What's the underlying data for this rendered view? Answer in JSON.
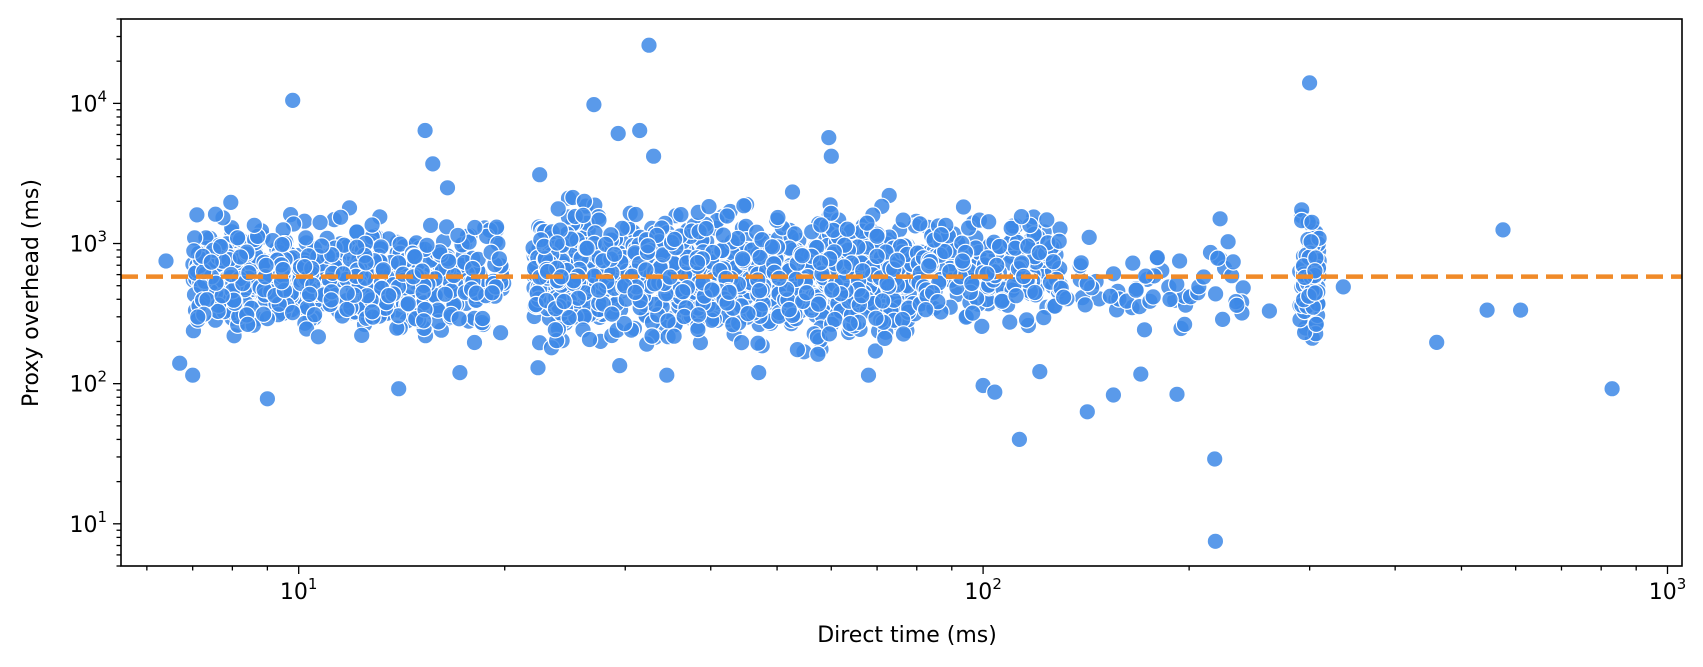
{
  "chart_data": {
    "type": "scatter",
    "title": "",
    "xlabel": "Direct time (ms)",
    "ylabel": "Proxy overhead (ms)",
    "xscale": "log",
    "yscale": "log",
    "xlim": [
      5.5,
      1050
    ],
    "ylim": [
      5,
      40000
    ],
    "grid": false,
    "legend": "none",
    "x_tick_labels": [
      {
        "value": 10,
        "base": "10",
        "exp": "1"
      },
      {
        "value": 100,
        "base": "10",
        "exp": "2"
      },
      {
        "value": 1000,
        "base": "10",
        "exp": "3"
      }
    ],
    "y_tick_labels": [
      {
        "value": 10,
        "base": "10",
        "exp": "1"
      },
      {
        "value": 100,
        "base": "10",
        "exp": "2"
      },
      {
        "value": 1000,
        "base": "10",
        "exp": "3"
      },
      {
        "value": 10000,
        "base": "10",
        "exp": "4"
      }
    ],
    "reference_line": {
      "y": 580,
      "style": "dashed",
      "color": "#f08a28"
    },
    "colors": {
      "points": "#3d88e6",
      "point_edge": "#ffffff",
      "reference_line": "#f08a28",
      "axes": "#000000"
    },
    "outliers": [
      {
        "x": 6.4,
        "y": 750
      },
      {
        "x": 6.7,
        "y": 140
      },
      {
        "x": 7.0,
        "y": 115
      },
      {
        "x": 7.1,
        "y": 1600
      },
      {
        "x": 9.0,
        "y": 78
      },
      {
        "x": 9.8,
        "y": 10500
      },
      {
        "x": 14.0,
        "y": 92
      },
      {
        "x": 15.3,
        "y": 6400
      },
      {
        "x": 15.7,
        "y": 3700
      },
      {
        "x": 16.5,
        "y": 2500
      },
      {
        "x": 17.2,
        "y": 120
      },
      {
        "x": 22.5,
        "y": 3100
      },
      {
        "x": 27.0,
        "y": 9800
      },
      {
        "x": 29.3,
        "y": 6100
      },
      {
        "x": 31.5,
        "y": 6400
      },
      {
        "x": 32.5,
        "y": 26000
      },
      {
        "x": 33.0,
        "y": 4200
      },
      {
        "x": 34.5,
        "y": 115
      },
      {
        "x": 47.0,
        "y": 120
      },
      {
        "x": 59.5,
        "y": 5700
      },
      {
        "x": 60.0,
        "y": 4200
      },
      {
        "x": 68.0,
        "y": 115
      },
      {
        "x": 100.0,
        "y": 97
      },
      {
        "x": 104.0,
        "y": 87
      },
      {
        "x": 113.0,
        "y": 40
      },
      {
        "x": 121.0,
        "y": 122
      },
      {
        "x": 142.0,
        "y": 63
      },
      {
        "x": 155.0,
        "y": 83
      },
      {
        "x": 170.0,
        "y": 117
      },
      {
        "x": 192.0,
        "y": 84
      },
      {
        "x": 197.0,
        "y": 265
      },
      {
        "x": 218.0,
        "y": 29
      },
      {
        "x": 218.5,
        "y": 7.5
      },
      {
        "x": 222.0,
        "y": 1500
      },
      {
        "x": 262.0,
        "y": 330
      },
      {
        "x": 300.0,
        "y": 14000
      },
      {
        "x": 336.0,
        "y": 490
      },
      {
        "x": 460.0,
        "y": 197
      },
      {
        "x": 545.0,
        "y": 335
      },
      {
        "x": 575.0,
        "y": 1250
      },
      {
        "x": 610.0,
        "y": 335
      },
      {
        "x": 830.0,
        "y": 92
      }
    ],
    "dense_clusters": [
      {
        "x_range": [
          7,
          20
        ],
        "y_range": [
          160,
          2000
        ],
        "count": 650
      },
      {
        "x_range": [
          22,
          80
        ],
        "y_range": [
          130,
          2500
        ],
        "count": 1100
      },
      {
        "x_range": [
          80,
          130
        ],
        "y_range": [
          200,
          2300
        ],
        "count": 220
      },
      {
        "x_range": [
          130,
          240
        ],
        "y_range": [
          180,
          1500
        ],
        "count": 60
      },
      {
        "x_range": [
          290,
          310
        ],
        "y_range": [
          120,
          2700
        ],
        "count": 90
      }
    ]
  }
}
